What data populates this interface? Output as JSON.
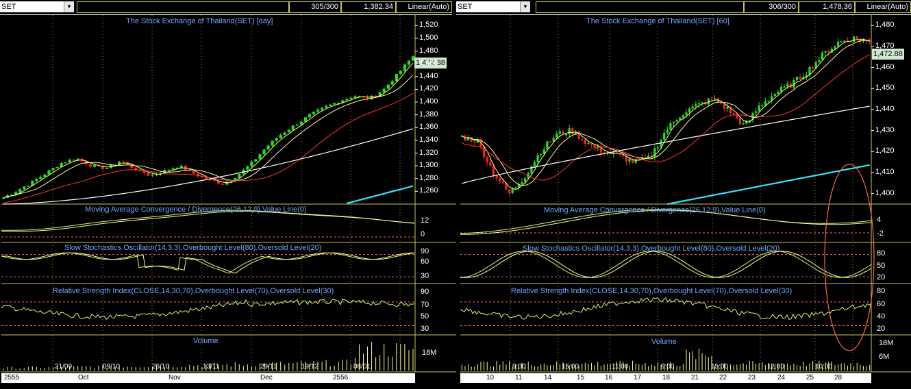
{
  "left": {
    "symbol": "SET",
    "count": "305/300",
    "price": "1,382.34",
    "scale": "Linear(Auto)",
    "title": "The Stock Exchange of Thailand(SET) [day]",
    "last": "1,472.88",
    "price_ticks": [
      "1,520",
      "1,500",
      "1,480",
      "1,460",
      "1,440",
      "1,420",
      "1,400",
      "1,380",
      "1,360",
      "1,340",
      "1,320",
      "1,300",
      "1,280",
      "1,260"
    ],
    "macd_title": "Moving Average Convergence / Divergence(26,12,9),Value Line(0)",
    "macd_ticks": [
      "12",
      "0"
    ],
    "stoch_title": "Slow Stochastics Oscillator(14,3,3),Overbought Level(80),Oversold Level(20)",
    "stoch_ticks": [
      "90",
      "60",
      "30"
    ],
    "rsi_title": "Relative Strength Index(CLOSE,14,30,70),Overbought Level(70),Oversold Level(30)",
    "rsi_ticks": [
      "90",
      "70",
      "50",
      "30"
    ],
    "vol_title": "Volume",
    "vol_tick": "18M",
    "x_top": [
      "21/09",
      "09/10",
      "26/10",
      "13/11",
      "29/11",
      "19/12",
      "08/01"
    ],
    "x_bottom": [
      "2555",
      "Oct",
      "Nov",
      "Dec",
      "2556"
    ]
  },
  "right": {
    "symbol": "SET",
    "count": "306/300",
    "price": "1,478.36",
    "scale": "Linear(Auto)",
    "title": "The Stock Exchange of Thailand(SET) [60]",
    "last": "1,472.88",
    "price_ticks": [
      "1,480",
      "1,470",
      "1,460",
      "1,450",
      "1,440",
      "1,430",
      "1,420",
      "1,410",
      "1,400"
    ],
    "macd_title": "Moving Average Convergence / Divergence(26,12,9),Value Line(0)",
    "macd_ticks": [
      "4",
      "-2"
    ],
    "stoch_title": "Slow Stochastics Oscillator(14,3,3),Overbought Level(80),Oversold Level(20)",
    "stoch_ticks": [
      "80",
      "50",
      "20"
    ],
    "rsi_title": "Relative Strength Index(CLOSE,14,30,70),Overbought Level(70),Oversold Level(30)",
    "rsi_ticks": [
      "80",
      "60",
      "40",
      "20"
    ],
    "vol_title": "Volume",
    "vol_ticks": [
      "18M",
      "6M"
    ],
    "x_top": [
      "9:00",
      "15:00",
      "11:00",
      "9:00",
      "15:00",
      "12:00",
      "10:00"
    ],
    "x_bottom": [
      "10",
      "11",
      "14",
      "15",
      "16",
      "17",
      "18",
      "21",
      "22",
      "23",
      "24",
      "25",
      "28"
    ]
  },
  "colors": {
    "up": "#22dd22",
    "down": "#ee2222",
    "ma_short": "#ffff66",
    "ma_mid": "#ff3333",
    "ma_long": "#ffffff",
    "ma_xlong": "#33e5ff",
    "grid": "#8a8a30",
    "ref": "#ff6666",
    "macd": "#ccff66",
    "signal": "#ffff99",
    "title": "#6fa8ff"
  },
  "chart_data": [
    {
      "type": "line",
      "title": "The Stock Exchange of Thailand(SET) [day]",
      "ylim": [
        1240,
        1530
      ],
      "series": [
        {
          "values": [
            1250,
            1262,
            1275,
            1290,
            1305,
            1312,
            1300,
            1296,
            1308,
            1295,
            1285,
            1292,
            1300,
            1288,
            1278,
            1272,
            1285,
            1305,
            1330,
            1350,
            1365,
            1380,
            1392,
            1402,
            1410,
            1405,
            1420,
            1445,
            1472
          ]
        }
      ]
    },
    {
      "type": "line",
      "title": "The Stock Exchange of Thailand(SET) [60]",
      "ylim": [
        1395,
        1483
      ],
      "series": [
        {
          "values": [
            1427,
            1425,
            1410,
            1400,
            1408,
            1420,
            1428,
            1430,
            1424,
            1420,
            1418,
            1415,
            1417,
            1430,
            1438,
            1442,
            1445,
            1440,
            1432,
            1442,
            1448,
            1452,
            1458,
            1466,
            1472,
            1474,
            1472
          ]
        }
      ]
    }
  ]
}
